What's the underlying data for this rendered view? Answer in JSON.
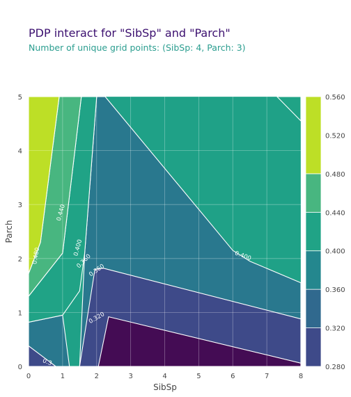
{
  "chart_data": {
    "type": "contour",
    "title": "PDP interact for \"SibSp\" and \"Parch\"",
    "subtitle": "Number of unique grid points: (SibSp: 4, Parch: 3)",
    "xlabel": "SibSp",
    "ylabel": "Parch",
    "xlim": [
      0,
      8
    ],
    "ylim": [
      0,
      5
    ],
    "x_ticks": [
      "0",
      "1",
      "2",
      "3",
      "4",
      "5",
      "6",
      "7",
      "8"
    ],
    "y_ticks": [
      "0",
      "1",
      "2",
      "3",
      "4",
      "5"
    ],
    "grid": true,
    "colorscale": "viridis",
    "colorbar": {
      "range": [
        0.28,
        0.56
      ],
      "ticks": [
        "0.280",
        "0.320",
        "0.360",
        "0.400",
        "0.440",
        "0.480",
        "0.520",
        "0.560"
      ],
      "levels": [
        {
          "from": 0.28,
          "to": 0.32,
          "color": "#3e4a89"
        },
        {
          "from": 0.32,
          "to": 0.36,
          "color": "#30698e"
        },
        {
          "from": 0.36,
          "to": 0.4,
          "color": "#24878e"
        },
        {
          "from": 0.4,
          "to": 0.44,
          "color": "#20a386"
        },
        {
          "from": 0.44,
          "to": 0.48,
          "color": "#48b680"
        },
        {
          "from": 0.48,
          "to": 0.56,
          "color": "#bddf26"
        }
      ]
    },
    "regions": [
      {
        "color": "#1fa187",
        "points": [
          [
            0,
            0
          ],
          [
            8,
            0
          ],
          [
            8,
            5
          ],
          [
            0,
            5
          ]
        ]
      },
      {
        "color": "#29788e",
        "points": [
          [
            0,
            0
          ],
          [
            1.5,
            0
          ],
          [
            1.65,
            2.1
          ],
          [
            2,
            5
          ],
          [
            2.25,
            5
          ],
          [
            6,
            2.15
          ],
          [
            6.5,
            1.95
          ],
          [
            8,
            1.55
          ],
          [
            8,
            0
          ]
        ]
      },
      {
        "color": "#3e4a89",
        "points": [
          [
            1.5,
            0
          ],
          [
            1.95,
            1.8
          ],
          [
            2.2,
            1.82
          ],
          [
            8,
            0.88
          ],
          [
            8,
            0
          ]
        ]
      },
      {
        "color": "#440c54",
        "points": [
          [
            2.35,
            0.92
          ],
          [
            8,
            0.06
          ],
          [
            8,
            0
          ],
          [
            2.05,
            0
          ]
        ]
      },
      {
        "color": "#29788e",
        "points": [
          [
            0,
            0
          ],
          [
            0,
            0.82
          ],
          [
            1.0,
            0.95
          ],
          [
            1.2,
            0
          ]
        ]
      },
      {
        "color": "#3e4a89",
        "points": [
          [
            0,
            0
          ],
          [
            0,
            0.38
          ],
          [
            0.8,
            0
          ]
        ]
      },
      {
        "color": "#20a386",
        "points": [
          [
            0,
            0.82
          ],
          [
            0,
            1.3
          ],
          [
            1.0,
            2.1
          ],
          [
            1.55,
            5
          ],
          [
            2,
            5
          ],
          [
            1.65,
            2.1
          ],
          [
            1.5,
            1.4
          ],
          [
            1.0,
            0.95
          ]
        ]
      },
      {
        "color": "#48b680",
        "points": [
          [
            0,
            1.3
          ],
          [
            0,
            1.72
          ],
          [
            0.35,
            2.3
          ],
          [
            0.9,
            5
          ],
          [
            1.55,
            5
          ],
          [
            1.0,
            2.1
          ]
        ]
      },
      {
        "color": "#bddf26",
        "points": [
          [
            0,
            1.72
          ],
          [
            0,
            5
          ],
          [
            0.9,
            5
          ],
          [
            0.35,
            2.3
          ]
        ]
      },
      {
        "color": "#20a386",
        "points": [
          [
            7.3,
            5
          ],
          [
            8,
            5
          ],
          [
            8,
            4.55
          ]
        ]
      }
    ],
    "contour_labels": [
      {
        "text": "0.480",
        "x": 0.22,
        "y": 2.05,
        "angle": -80
      },
      {
        "text": "0.440",
        "x": 0.95,
        "y": 2.85,
        "angle": -75
      },
      {
        "text": "0.400",
        "x": 1.45,
        "y": 2.2,
        "angle": -75
      },
      {
        "text": "0.360",
        "x": 1.62,
        "y": 1.95,
        "angle": -45
      },
      {
        "text": "0.360",
        "x": 2.0,
        "y": 1.78,
        "angle": -35
      },
      {
        "text": "0.320",
        "x": 2.0,
        "y": 0.9,
        "angle": -30
      },
      {
        "text": "0.400",
        "x": 6.3,
        "y": 2.05,
        "angle": 20
      },
      {
        "text": "0.3",
        "x": 0.55,
        "y": 0.08,
        "angle": 20
      }
    ]
  }
}
